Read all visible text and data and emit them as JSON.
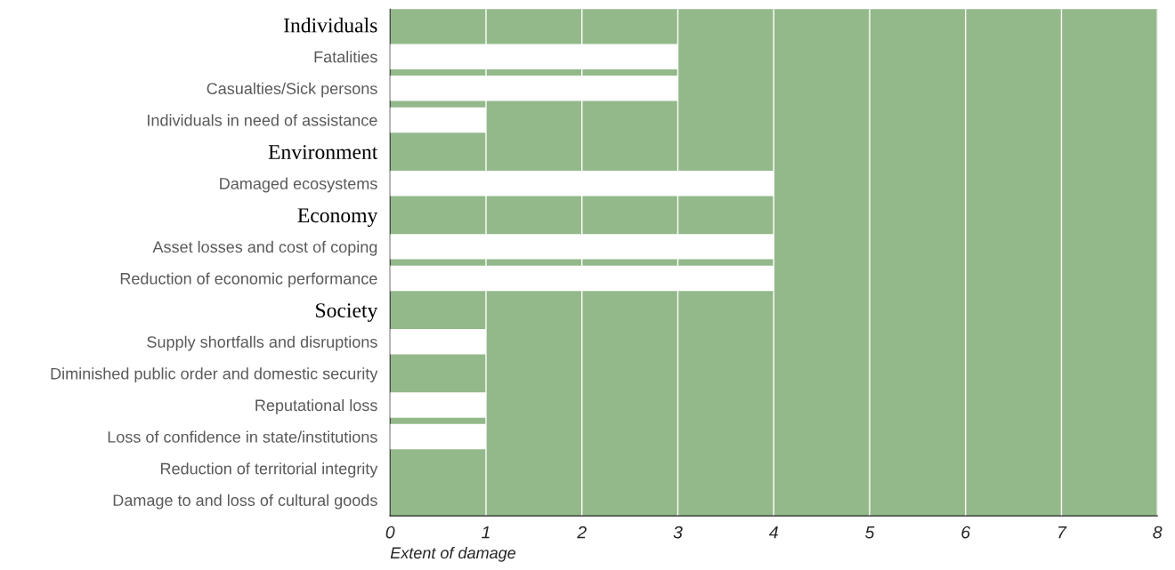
{
  "chart_data": {
    "type": "bar",
    "orientation": "horizontal",
    "xlabel": "Extent of damage",
    "categories": [
      "Individuals",
      "Fatalities",
      "Casualties/Sick persons",
      "Individuals in need of assistance",
      "Environment",
      "Damaged ecosystems",
      "Economy",
      "Asset losses and cost of coping",
      "Reduction of economic performance",
      "Society",
      "Supply shortfalls and disruptions",
      "Diminished public order and domestic security",
      "Reputational loss",
      "Loss of confidence in state/institutions",
      "Reduction of territorial integrity",
      "Damage to and loss of cultural goods"
    ],
    "values": [
      null,
      3,
      3,
      1,
      null,
      4,
      null,
      4,
      4,
      null,
      1,
      0,
      1,
      1,
      0,
      0
    ],
    "color": "#ffffff",
    "xlim": [
      0,
      8
    ],
    "xticks": [
      0,
      1,
      2,
      3,
      4,
      5,
      6,
      7,
      8
    ],
    "grid": "x"
  }
}
